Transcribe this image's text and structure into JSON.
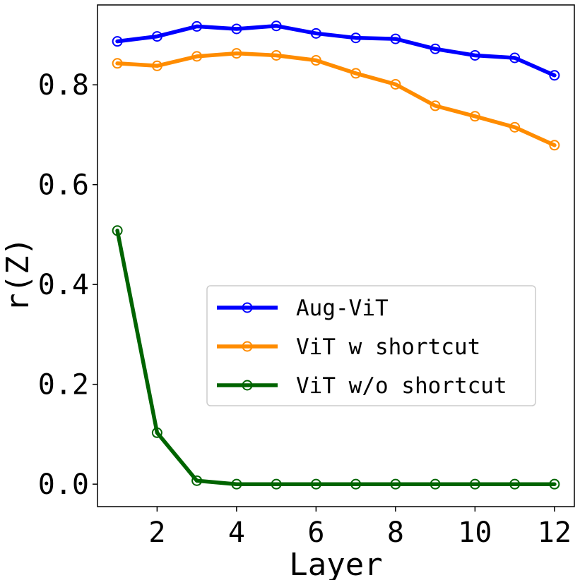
{
  "chart_data": {
    "type": "line",
    "xlabel": "Layer",
    "ylabel": "r(Z)",
    "xlim": [
      0.5,
      12.5
    ],
    "ylim": [
      -0.045,
      0.96
    ],
    "xticks": [
      2,
      4,
      6,
      8,
      10,
      12
    ],
    "yticks": [
      0.0,
      0.2,
      0.4,
      0.6,
      0.8
    ],
    "ytick_labels": [
      "0.0",
      "0.2",
      "0.4",
      "0.6",
      "0.8"
    ],
    "grid": false,
    "legend_position": "center-right",
    "x": [
      1,
      2,
      3,
      4,
      5,
      6,
      7,
      8,
      9,
      10,
      11,
      12
    ],
    "series": [
      {
        "name": "Aug-ViT",
        "color": "#0000ff",
        "values": [
          0.887,
          0.897,
          0.917,
          0.912,
          0.918,
          0.903,
          0.894,
          0.892,
          0.872,
          0.859,
          0.854,
          0.819
        ]
      },
      {
        "name": "ViT w shortcut",
        "color": "#ff8c00",
        "values": [
          0.843,
          0.838,
          0.857,
          0.863,
          0.859,
          0.849,
          0.823,
          0.801,
          0.758,
          0.737,
          0.715,
          0.679
        ]
      },
      {
        "name": "ViT w/o shortcut",
        "color": "#006400",
        "values": [
          0.508,
          0.103,
          0.007,
          0.0,
          0.0,
          0.0,
          0.0,
          0.0,
          0.0,
          0.0,
          0.0,
          0.0
        ]
      }
    ]
  }
}
